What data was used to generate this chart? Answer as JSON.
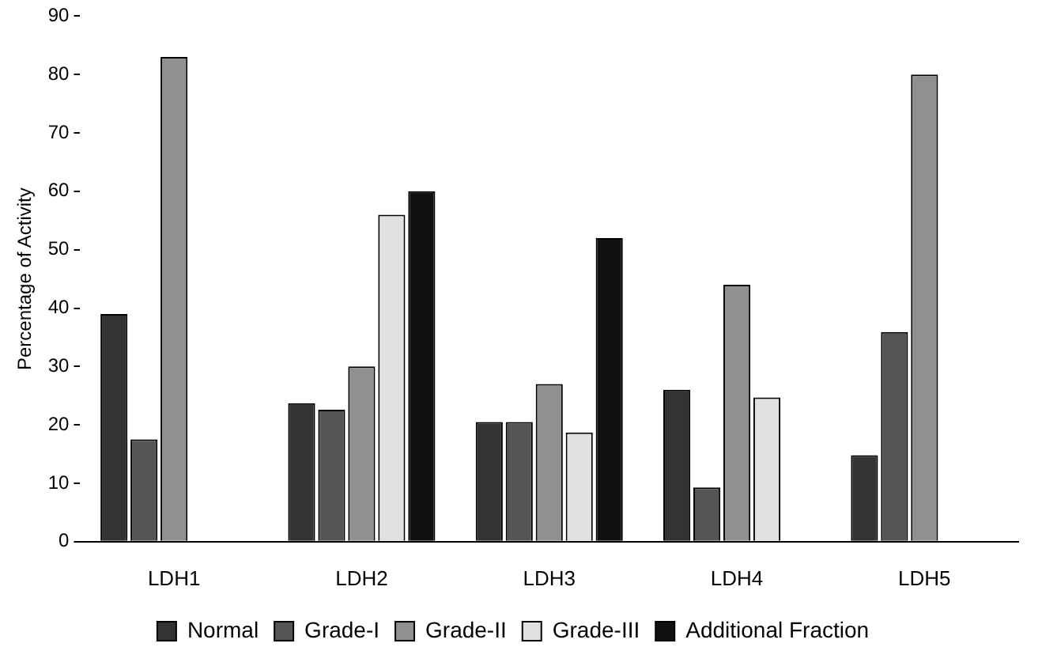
{
  "chart_data": {
    "type": "bar",
    "ylabel": "Percentage of Activity",
    "categories": [
      "LDH1",
      "LDH2",
      "LDH3",
      "LDH4",
      "LDH5"
    ],
    "series": [
      {
        "name": "Normal",
        "color": "#333333",
        "values": [
          39,
          23.7,
          20.5,
          26,
          14.8
        ]
      },
      {
        "name": "Grade-I",
        "color": "#555555",
        "values": [
          17.5,
          22.6,
          20.5,
          9.3,
          35.9
        ]
      },
      {
        "name": "Grade-II",
        "color": "#909090",
        "values": [
          83,
          30,
          27,
          44,
          80
        ]
      },
      {
        "name": "Grade-III",
        "color": "#e0e0e0",
        "values": [
          null,
          56,
          18.7,
          24.7,
          null
        ]
      },
      {
        "name": "Additional Fraction",
        "color": "#111111",
        "values": [
          null,
          60,
          52,
          null,
          null
        ]
      }
    ],
    "ylim": [
      0,
      90
    ],
    "yticks": [
      0,
      10,
      20,
      30,
      40,
      50,
      60,
      70,
      80,
      90
    ],
    "grid": false,
    "legend": "bottom"
  }
}
